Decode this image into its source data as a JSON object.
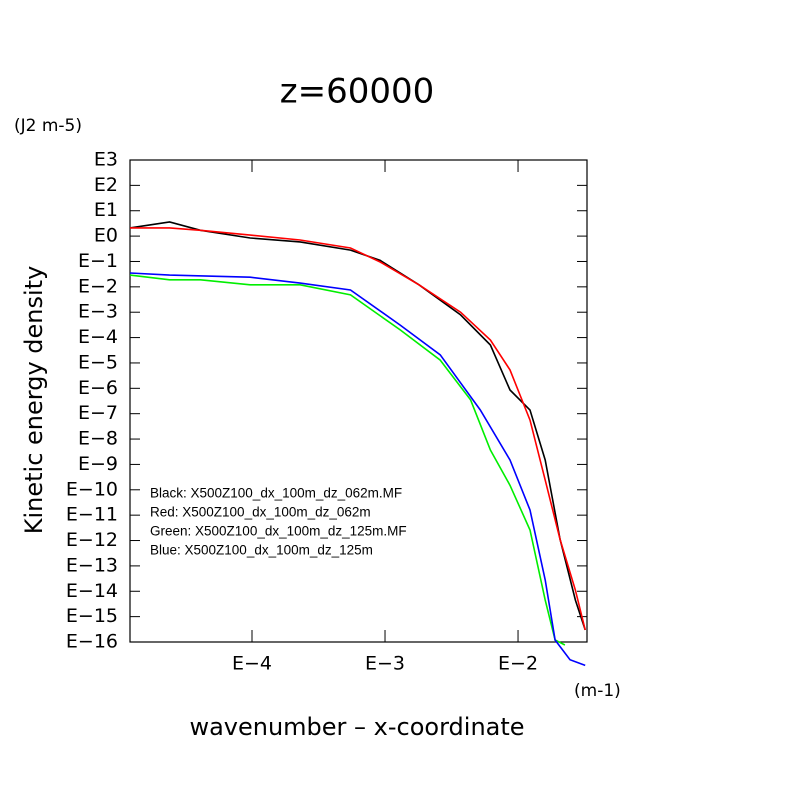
{
  "chart_data": {
    "type": "line",
    "title": "z=60000",
    "y_unit": "(J2 m-5)",
    "x_unit": "(m-1)",
    "ylabel": "Kinetic energy density",
    "xlabel": "wavenumber – x-coordinate",
    "xscale": "log",
    "yscale": "log",
    "xlim": [
      1.21e-05,
      0.033
    ],
    "ylim": [
      1e-16,
      1000
    ],
    "xticks": [
      {
        "value": 0.0001,
        "label": "E−4"
      },
      {
        "value": 0.001,
        "label": "E−3"
      },
      {
        "value": 0.01,
        "label": "E−2"
      }
    ],
    "yticks": [
      {
        "value": 1000,
        "label": "E3"
      },
      {
        "value": 100,
        "label": "E2"
      },
      {
        "value": 10,
        "label": "E1"
      },
      {
        "value": 1,
        "label": "E0"
      },
      {
        "value": 0.1,
        "label": "E−1"
      },
      {
        "value": 0.01,
        "label": "E−2"
      },
      {
        "value": 0.001,
        "label": "E−3"
      },
      {
        "value": 0.0001,
        "label": "E−4"
      },
      {
        "value": 1e-05,
        "label": "E−5"
      },
      {
        "value": 1e-06,
        "label": "E−6"
      },
      {
        "value": 1e-07,
        "label": "E−7"
      },
      {
        "value": 1e-08,
        "label": "E−8"
      },
      {
        "value": 1e-09,
        "label": "E−9"
      },
      {
        "value": 1e-10,
        "label": "E−10"
      },
      {
        "value": 1e-11,
        "label": "E−11"
      },
      {
        "value": 1e-12,
        "label": "E−12"
      },
      {
        "value": 1e-13,
        "label": "E−13"
      },
      {
        "value": 1e-14,
        "label": "E−14"
      },
      {
        "value": 1e-15,
        "label": "E−15"
      },
      {
        "value": 1e-16,
        "label": "E−16"
      }
    ],
    "annotations": [
      "Black: X500Z100_dx_100m_dz_062m.MF",
      "Red: X500Z100_dx_100m_dz_062m",
      "Green: X500Z100_dx_100m_dz_125m.MF",
      "Blue: X500Z100_dx_100m_dz_125m"
    ],
    "series": [
      {
        "color": "#000000",
        "x": [
          1.21e-05,
          2.4e-05,
          4.1e-05,
          9.7e-05,
          0.00023,
          0.00055,
          0.00092,
          0.0018,
          0.0037,
          0.0062,
          0.0087,
          0.0123,
          0.016,
          0.0207,
          0.027,
          0.032
        ],
        "values": [
          2.1,
          3.6,
          1.7,
          0.84,
          0.59,
          0.28,
          0.11,
          0.012,
          0.00078,
          5.1e-05,
          8.6e-07,
          1.4e-07,
          1.5e-09,
          1.1e-12,
          4.5e-15,
          3e-16
        ]
      },
      {
        "color": "#ff0000",
        "x": [
          1.21e-05,
          2.4e-05,
          4.1e-05,
          9.7e-05,
          0.00023,
          0.00055,
          0.00092,
          0.0018,
          0.0037,
          0.0062,
          0.0087,
          0.0123,
          0.016,
          0.0207,
          0.027,
          0.032
        ],
        "values": [
          2.1,
          2.1,
          1.7,
          1.1,
          0.7,
          0.34,
          0.095,
          0.012,
          0.001,
          8e-05,
          5.3e-06,
          5.6e-08,
          2.4e-10,
          1.1e-12,
          1.1e-14,
          3e-16
        ]
      },
      {
        "color": "#00ee00",
        "x": [
          1.21e-05,
          2.4e-05,
          4.1e-05,
          9.7e-05,
          0.00023,
          0.00055,
          0.0013,
          0.0026,
          0.0044,
          0.0062,
          0.0087,
          0.0123,
          0.016,
          0.019,
          0.0225
        ],
        "values": [
          0.029,
          0.019,
          0.019,
          0.012,
          0.012,
          0.0048,
          0.0002,
          1.3e-05,
          3.5e-07,
          3.7e-09,
          1.5e-10,
          2.6e-12,
          4.5e-15,
          1.2e-16,
          7.6e-17
        ]
      },
      {
        "color": "#0000ff",
        "x": [
          1.21e-05,
          2.4e-05,
          9.7e-05,
          0.00023,
          0.00055,
          0.0013,
          0.0026,
          0.0052,
          0.0087,
          0.0123,
          0.016,
          0.019,
          0.0246,
          0.032
        ],
        "values": [
          0.035,
          0.029,
          0.024,
          0.014,
          0.0075,
          0.00031,
          2.1e-05,
          1.4e-07,
          1.5e-09,
          1.6e-11,
          2.8e-14,
          1.2e-16,
          2e-17,
          1.2e-17
        ]
      }
    ]
  }
}
